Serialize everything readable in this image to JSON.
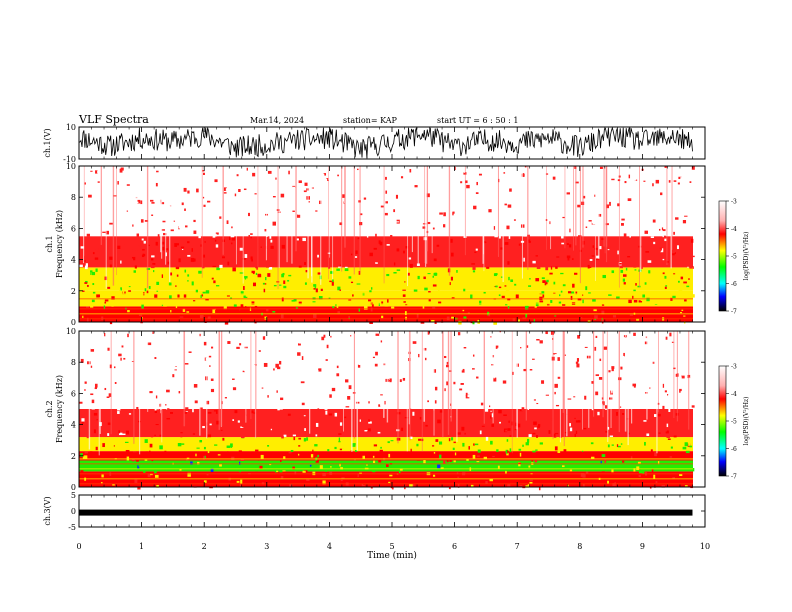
{
  "header": {
    "title": "VLF Spectra",
    "date": "Mar.14, 2024",
    "station": "station= KAP",
    "start": "start  UT =   6 : 50 : 1"
  },
  "colorbar": {
    "label": "log(PSD)(V²/Hz)",
    "ticks": [
      "-3",
      "-4",
      "-5",
      "-6",
      "-7"
    ],
    "colors": [
      "#ffffff",
      "#ff0000",
      "#ffff00",
      "#00ff00",
      "#0000ff",
      "#000000"
    ]
  },
  "chart_data": [
    {
      "type": "line",
      "name": "ch1-waveform",
      "ylabel": "ch.1(V)",
      "ylim": [
        -10,
        10
      ],
      "yticks": [
        "10",
        "-10"
      ],
      "xlim": [
        0,
        10
      ],
      "x": [
        0,
        0.5,
        1,
        1.5,
        2,
        2.5,
        3,
        3.5,
        4,
        4.5,
        5,
        5.5,
        6,
        6.5,
        7,
        7.5,
        8,
        8.5,
        9,
        9.5,
        9.8
      ],
      "values": [
        4,
        -2,
        3,
        1,
        5,
        -3,
        -1,
        2,
        3,
        -4,
        1,
        6,
        -2,
        2,
        0,
        3,
        -3,
        5,
        1,
        4,
        -1
      ]
    },
    {
      "type": "heatmap",
      "name": "ch1-spectrogram",
      "ylabel": "ch.1",
      "ylabel2": "Frequency  (kHz)",
      "ylim": [
        0,
        10
      ],
      "yticks": [
        "10",
        "8",
        "6",
        "4",
        "2",
        "0"
      ],
      "xlim": [
        0,
        10
      ],
      "bands_khz": [
        {
          "range": [
            0,
            1
          ],
          "log_psd": -4.5
        },
        {
          "range": [
            1,
            2
          ],
          "log_psd": -4.8
        },
        {
          "range": [
            2,
            3.5
          ],
          "log_psd": -5.0
        },
        {
          "range": [
            3.5,
            5.5
          ],
          "log_psd": -4.0
        },
        {
          "range": [
            5.5,
            10
          ],
          "log_psd": -3.4
        }
      ]
    },
    {
      "type": "heatmap",
      "name": "ch2-spectrogram",
      "ylabel": "ch.2",
      "ylabel2": "Frequency  (kHz)",
      "ylim": [
        0,
        10
      ],
      "yticks": [
        "10",
        "8",
        "6",
        "4",
        "2",
        "0"
      ],
      "xlim": [
        0,
        10
      ],
      "bands_khz": [
        {
          "range": [
            0,
            1
          ],
          "log_psd": -4.4
        },
        {
          "range": [
            1,
            1.7
          ],
          "log_psd": -5.1
        },
        {
          "range": [
            1.7,
            2.3
          ],
          "log_psd": -4.5
        },
        {
          "range": [
            2.3,
            3.2
          ],
          "log_psd": -5.0
        },
        {
          "range": [
            3.2,
            5
          ],
          "log_psd": -4.0
        },
        {
          "range": [
            5,
            10
          ],
          "log_psd": -3.4
        }
      ]
    },
    {
      "type": "line",
      "name": "ch3-waveform",
      "ylabel": "ch.3(V)",
      "ylim": [
        -5,
        5
      ],
      "yticks": [
        "5",
        "0",
        "-5"
      ],
      "xlim": [
        0,
        10
      ],
      "x": [
        0,
        9.8
      ],
      "values": [
        -0.5,
        -0.5
      ]
    }
  ],
  "xaxis": {
    "label": "Time  (min)",
    "ticks": [
      "0",
      "1",
      "2",
      "3",
      "4",
      "5",
      "6",
      "7",
      "8",
      "9",
      "10"
    ]
  }
}
